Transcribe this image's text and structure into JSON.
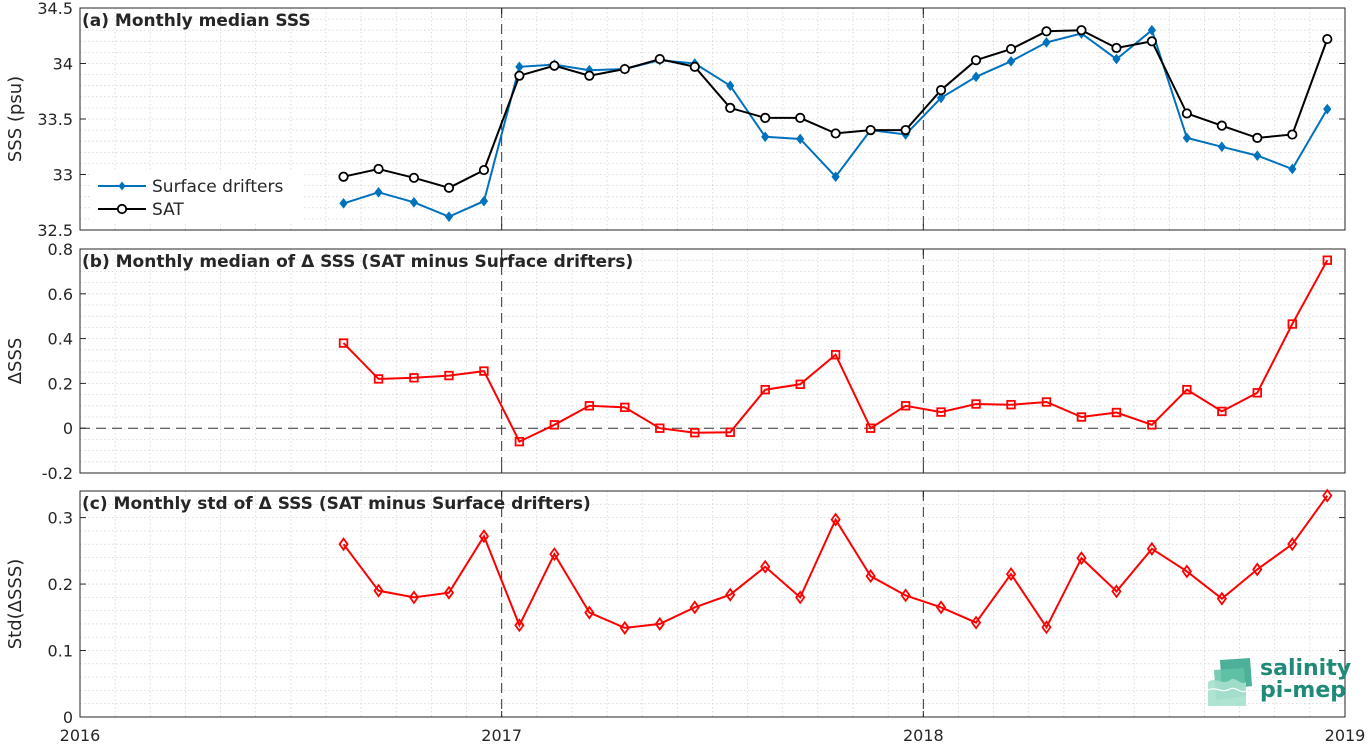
{
  "chart_data": [
    {
      "type": "line",
      "title": "(a) Monthly median SSS",
      "xlabel": "",
      "ylabel": "SSS (psu)",
      "xlim": [
        2016,
        2019
      ],
      "ylim": [
        32.5,
        34.5
      ],
      "yticks": [
        32.5,
        33,
        33.5,
        34,
        34.5
      ],
      "ytick_labels": [
        "32.5",
        "33",
        "33.5",
        "34",
        "34.5"
      ],
      "grid": true,
      "legend_position": "left",
      "x": [
        2016.625,
        2016.708,
        2016.792,
        2016.875,
        2016.958,
        2017.042,
        2017.125,
        2017.208,
        2017.292,
        2017.375,
        2017.458,
        2017.542,
        2017.625,
        2017.708,
        2017.792,
        2017.875,
        2017.958,
        2018.042,
        2018.125,
        2018.208,
        2018.292,
        2018.375,
        2018.458,
        2018.542,
        2018.625,
        2018.708,
        2018.792,
        2018.875,
        2018.958
      ],
      "series": [
        {
          "name": "Surface drifters",
          "color": "#0072bd",
          "marker": "diamond",
          "values": [
            32.74,
            32.84,
            32.75,
            32.62,
            32.76,
            33.97,
            33.99,
            33.94,
            33.95,
            34.03,
            34.0,
            33.8,
            33.34,
            33.32,
            32.98,
            33.4,
            33.36,
            33.69,
            33.88,
            34.02,
            34.19,
            34.27,
            34.04,
            34.3,
            33.33,
            33.25,
            33.17,
            33.05,
            33.59
          ]
        },
        {
          "name": "SAT",
          "color": "#000000",
          "marker": "circle",
          "values": [
            32.98,
            33.05,
            32.97,
            32.88,
            33.04,
            33.89,
            33.98,
            33.89,
            33.95,
            34.04,
            33.97,
            33.6,
            33.51,
            33.51,
            33.37,
            33.4,
            33.4,
            33.76,
            34.03,
            34.13,
            34.29,
            34.3,
            34.14,
            34.2,
            33.55,
            33.44,
            33.33,
            33.36,
            34.22
          ]
        }
      ]
    },
    {
      "type": "line",
      "title": "(b) Monthly median of Δ SSS (SAT minus Surface drifters)",
      "xlabel": "",
      "ylabel": "ΔSSS",
      "xlim": [
        2016,
        2019
      ],
      "ylim": [
        -0.2,
        0.8
      ],
      "yticks": [
        -0.2,
        0,
        0.2,
        0.4,
        0.6,
        0.8
      ],
      "ytick_labels": [
        "-0.2",
        "0",
        "0.2",
        "0.4",
        "0.6",
        "0.8"
      ],
      "grid": true,
      "zero_line": true,
      "x": [
        2016.625,
        2016.708,
        2016.792,
        2016.875,
        2016.958,
        2017.042,
        2017.125,
        2017.208,
        2017.292,
        2017.375,
        2017.458,
        2017.542,
        2017.625,
        2017.708,
        2017.792,
        2017.875,
        2017.958,
        2018.042,
        2018.125,
        2018.208,
        2018.292,
        2018.375,
        2018.458,
        2018.542,
        2018.625,
        2018.708,
        2018.792,
        2018.875,
        2018.958
      ],
      "series": [
        {
          "color": "#ff0000",
          "marker": "square",
          "values": [
            0.38,
            0.22,
            0.225,
            0.235,
            0.255,
            -0.06,
            0.015,
            0.1,
            0.093,
            0.0,
            -0.02,
            -0.018,
            0.172,
            0.196,
            0.328,
            0.0,
            0.1,
            0.072,
            0.108,
            0.105,
            0.117,
            0.05,
            0.07,
            0.015,
            0.172,
            0.075,
            0.158,
            0.465,
            0.75
          ]
        }
      ]
    },
    {
      "type": "line",
      "title": "(c) Monthly std of Δ SSS (SAT minus Surface drifters)",
      "xlabel": "",
      "ylabel": "Std(ΔSSS)",
      "xlim": [
        2016,
        2019
      ],
      "ylim": [
        0,
        0.34
      ],
      "yticks": [
        0,
        0.1,
        0.2,
        0.3
      ],
      "ytick_labels": [
        "0",
        "0.1",
        "0.2",
        "0.3"
      ],
      "xticks": [
        2016,
        2017,
        2018,
        2019
      ],
      "xtick_labels": [
        "2016",
        "2017",
        "2018",
        "2019"
      ],
      "grid": true,
      "x": [
        2016.625,
        2016.708,
        2016.792,
        2016.875,
        2016.958,
        2017.042,
        2017.125,
        2017.208,
        2017.292,
        2017.375,
        2017.458,
        2017.542,
        2017.625,
        2017.708,
        2017.792,
        2017.875,
        2017.958,
        2018.042,
        2018.125,
        2018.208,
        2018.292,
        2018.375,
        2018.458,
        2018.542,
        2018.625,
        2018.708,
        2018.792,
        2018.875,
        2018.958
      ],
      "series": [
        {
          "color": "#ff0000",
          "marker": "diamond",
          "values": [
            0.26,
            0.19,
            0.18,
            0.187,
            0.272,
            0.138,
            0.245,
            0.157,
            0.134,
            0.14,
            0.165,
            0.184,
            0.226,
            0.18,
            0.297,
            0.212,
            0.183,
            0.165,
            0.142,
            0.215,
            0.135,
            0.239,
            0.189,
            0.253,
            0.219,
            0.178,
            0.222,
            0.26,
            0.333
          ]
        }
      ]
    }
  ],
  "year_markers": [
    2017,
    2018
  ],
  "logo": {
    "line1": "salinity",
    "line2": "pi-mep",
    "color": "#1f8a78"
  }
}
